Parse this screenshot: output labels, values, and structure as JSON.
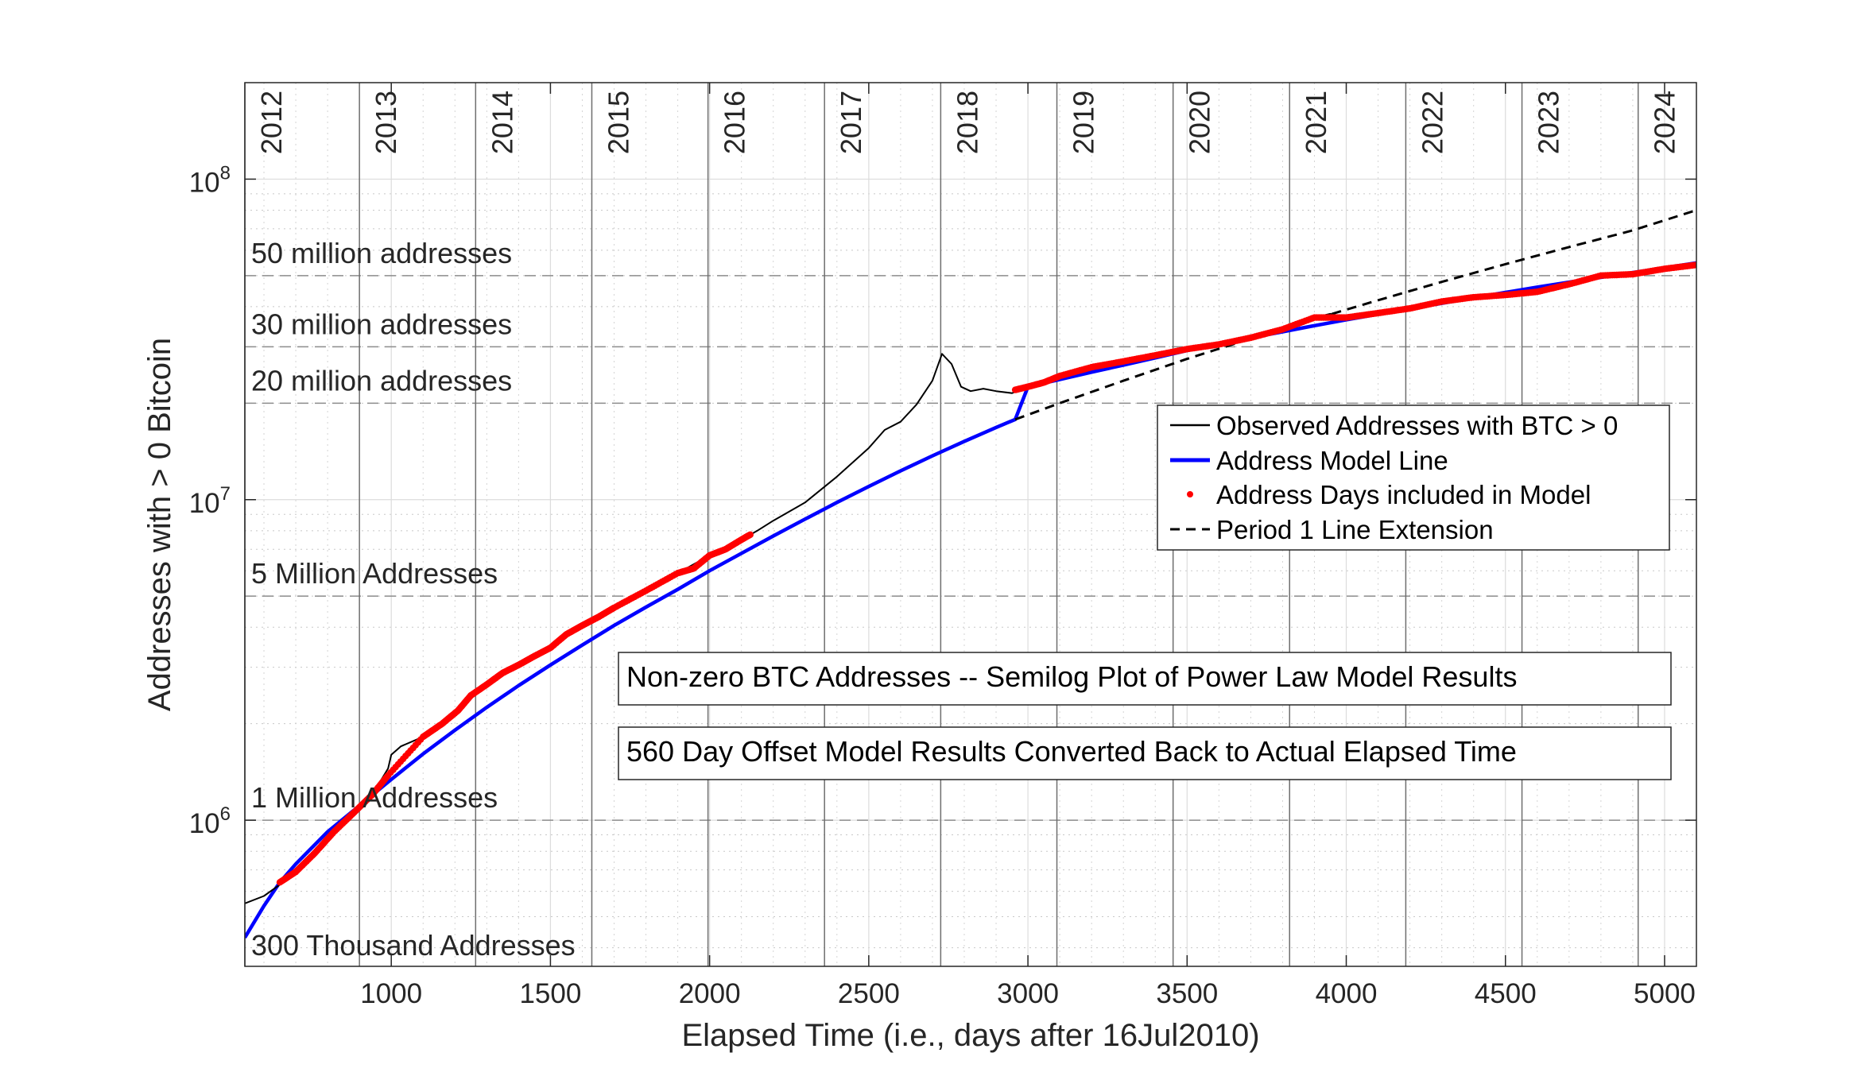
{
  "chart_data": {
    "type": "line",
    "xlabel": "Elapsed Time (i.e., days after 16Jul2010)",
    "ylabel": "Addresses with > 0 Bitcoin",
    "xlim": [
      540,
      5100
    ],
    "ylim": [
      350000,
      200000000
    ],
    "yscale": "log",
    "grid": true,
    "x_ticks": [
      1000,
      1500,
      2000,
      2500,
      3000,
      3500,
      4000,
      4500,
      5000
    ],
    "x_tick_labels": [
      "1000",
      "1500",
      "2000",
      "2500",
      "3000",
      "3500",
      "4000",
      "4500",
      "5000"
    ],
    "y_ticks": [
      {
        "value": 1000000,
        "base": "10",
        "exp": "6"
      },
      {
        "value": 10000000,
        "base": "10",
        "exp": "7"
      },
      {
        "value": 100000000,
        "base": "10",
        "exp": "8"
      }
    ],
    "year_markers": [
      {
        "label": "2012",
        "x": 535
      },
      {
        "label": "2013",
        "x": 900
      },
      {
        "label": "2014",
        "x": 1265
      },
      {
        "label": "2015",
        "x": 1630
      },
      {
        "label": "2016",
        "x": 1995
      },
      {
        "label": "2017",
        "x": 2361
      },
      {
        "label": "2018",
        "x": 2726
      },
      {
        "label": "2019",
        "x": 3091
      },
      {
        "label": "2020",
        "x": 3456
      },
      {
        "label": "2021",
        "x": 3822
      },
      {
        "label": "2022",
        "x": 4187
      },
      {
        "label": "2023",
        "x": 4552
      },
      {
        "label": "2024",
        "x": 4917
      }
    ],
    "reference_lines": [
      {
        "label": "50 million addresses",
        "value": 50000000
      },
      {
        "label": "30 million addresses",
        "value": 30000000
      },
      {
        "label": "20 million addresses",
        "value": 20000000
      },
      {
        "label": "5 Million Addresses",
        "value": 5000000
      },
      {
        "label": "1 Million Addresses",
        "value": 1000000
      },
      {
        "label": "300 Thousand Addresses",
        "value": 300000
      }
    ],
    "series": [
      {
        "name": "Observed Addresses with BTC > 0",
        "color": "#000000",
        "style": "solid",
        "x": [
          540,
          600,
          660,
          700,
          760,
          820,
          880,
          940,
          990,
          1000,
          1030,
          1100,
          1160,
          1210,
          1250,
          1300,
          1350,
          1400,
          1450,
          1500,
          1550,
          1600,
          1650,
          1700,
          1800,
          1900,
          2000,
          2050,
          2100,
          2150,
          2200,
          2300,
          2400,
          2500,
          2550,
          2600,
          2650,
          2700,
          2730,
          2760,
          2790,
          2820,
          2860,
          2900,
          2950,
          3000,
          3050,
          3100,
          3200,
          3300,
          3400,
          3500,
          3600,
          3700,
          3800,
          3900,
          3950,
          4000,
          4100,
          4200,
          4300,
          4400,
          4500,
          4600,
          4700,
          4800,
          4900,
          5000,
          5100
        ],
        "y": [
          550000,
          580000,
          640000,
          690000,
          790000,
          920000,
          1050000,
          1200000,
          1450000,
          1600000,
          1700000,
          1820000,
          2000000,
          2200000,
          2450000,
          2650000,
          2880000,
          3050000,
          3250000,
          3450000,
          3800000,
          4050000,
          4300000,
          4600000,
          5200000,
          5900000,
          6700000,
          7100000,
          7500000,
          8000000,
          8600000,
          9800000,
          11800000,
          14500000,
          16500000,
          17500000,
          19800000,
          23500000,
          28500000,
          26500000,
          22500000,
          21800000,
          22200000,
          21800000,
          21500000,
          22500000,
          23200000,
          24300000,
          25900000,
          27000000,
          28200000,
          29500000,
          30500000,
          32000000,
          34000000,
          37000000,
          38000000,
          37000000,
          38200000,
          39500000,
          41500000,
          42800000,
          43500000,
          44500000,
          47000000,
          50000000,
          50500000,
          52500000,
          54000000
        ]
      },
      {
        "name": "Address Model Line",
        "color": "#0000ff",
        "style": "solid",
        "x": [
          540,
          600,
          650,
          700,
          800,
          900,
          1000,
          1100,
          1200,
          1300,
          1400,
          1500,
          1600,
          1700,
          1800,
          1900,
          2000,
          2100,
          2200,
          2300,
          2400,
          2500,
          2600,
          2700,
          2800,
          2900,
          2960,
          3000,
          3100,
          3200,
          3300,
          3400,
          3500,
          3600,
          3700,
          3800,
          3900,
          4000,
          4100,
          4200,
          4300,
          4400,
          4500,
          4600,
          4700,
          4800,
          4900,
          5000,
          5100
        ],
        "y": [
          430000,
          540000,
          640000,
          730000,
          920000,
          1110000,
          1340000,
          1610000,
          1910000,
          2250000,
          2630000,
          3050000,
          3520000,
          4050000,
          4620000,
          5250000,
          6000000,
          6800000,
          7700000,
          8700000,
          9800000,
          11000000,
          12300000,
          13700000,
          15200000,
          16800000,
          17800000,
          22500000,
          23700000,
          25000000,
          26300000,
          27700000,
          29200000,
          30600000,
          32000000,
          33400000,
          34900000,
          36400000,
          37900000,
          39400000,
          41000000,
          42600000,
          44300000,
          46000000,
          47700000,
          49400000,
          51100000,
          52900000,
          54800000
        ]
      },
      {
        "name": "Address Days included in Model",
        "color": "#ff0000",
        "style": "dots",
        "x": [
          650,
          700,
          760,
          820,
          880,
          940,
          990,
          1100,
          1160,
          1210,
          1250,
          1300,
          1350,
          1400,
          1450,
          1500,
          1550,
          1600,
          1650,
          1700,
          1800,
          1900,
          1950,
          2000,
          2050,
          2100,
          2130,
          2960,
          3000,
          3050,
          3100,
          3200,
          3300,
          3400,
          3500,
          3600,
          3700,
          3800,
          3900,
          4000,
          4100,
          4200,
          4300,
          4400,
          4500,
          4600,
          4700,
          4800,
          4900,
          5000,
          5100
        ],
        "y": [
          640000,
          690000,
          790000,
          920000,
          1050000,
          1200000,
          1380000,
          1820000,
          2000000,
          2200000,
          2450000,
          2650000,
          2880000,
          3050000,
          3250000,
          3450000,
          3800000,
          4050000,
          4300000,
          4600000,
          5200000,
          5900000,
          6100000,
          6700000,
          7000000,
          7500000,
          7800000,
          22000000,
          22500000,
          23200000,
          24300000,
          25900000,
          27000000,
          28200000,
          29500000,
          30500000,
          32000000,
          34000000,
          37000000,
          37000000,
          38200000,
          39500000,
          41500000,
          42800000,
          43500000,
          44500000,
          47000000,
          50000000,
          50500000,
          52500000,
          54000000
        ]
      },
      {
        "name": "Period 1 Line Extension",
        "color": "#000000",
        "style": "dashed",
        "x": [
          2960,
          3100,
          3300,
          3500,
          3700,
          3900,
          4100,
          4300,
          4500,
          4700,
          4900,
          5100
        ],
        "y": [
          17800000,
          20000000,
          23500000,
          27500000,
          31800000,
          36600000,
          41900000,
          47800000,
          54300000,
          61400000,
          69200000,
          80000000
        ]
      }
    ],
    "notes": [
      "Non-zero BTC Addresses -- Semilog Plot of Power Law Model Results",
      "560 Day Offset Model Results Converted Back to Actual Elapsed Time"
    ],
    "legend_position": "inside-right"
  }
}
